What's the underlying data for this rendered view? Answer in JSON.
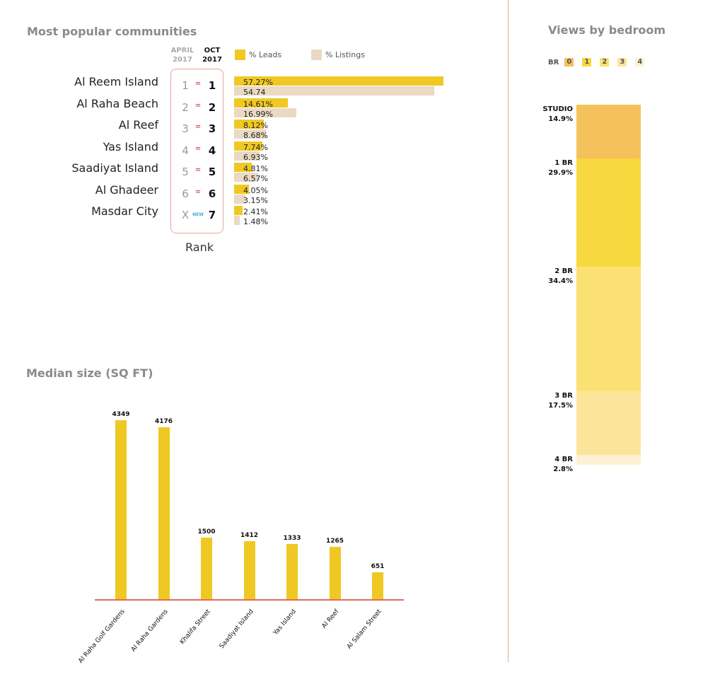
{
  "communities": {
    "title": "Most popular communities",
    "header_prev": [
      "APRIL",
      "2017"
    ],
    "header_curr": [
      "OCT",
      "2017"
    ],
    "legend_leads": "% Leads",
    "legend_listings": "% Listings",
    "rank_caption": "Rank",
    "colors": {
      "leads": "#f0c823",
      "listings": "#ead9c3",
      "rank_box": "#e6a49a"
    },
    "rows": [
      {
        "name": "Al Reem Island",
        "prev": "1",
        "change": "=",
        "curr": "1",
        "leads": 57.27,
        "listings": 54.74,
        "leads_label": "57.27%",
        "listings_label": "54.74"
      },
      {
        "name": "Al Raha Beach",
        "prev": "2",
        "change": "=",
        "curr": "2",
        "leads": 14.61,
        "listings": 16.99,
        "leads_label": "14.61%",
        "listings_label": "16.99%"
      },
      {
        "name": "Al Reef",
        "prev": "3",
        "change": "=",
        "curr": "3",
        "leads": 8.12,
        "listings": 8.68,
        "leads_label": "8.12%",
        "listings_label": "8.68%"
      },
      {
        "name": "Yas Island",
        "prev": "4",
        "change": "=",
        "curr": "4",
        "leads": 7.74,
        "listings": 6.93,
        "leads_label": "7.74%",
        "listings_label": "6.93%"
      },
      {
        "name": "Saadiyat Island",
        "prev": "5",
        "change": "=",
        "curr": "5",
        "leads": 4.81,
        "listings": 6.57,
        "leads_label": "4.81%",
        "listings_label": "6.57%"
      },
      {
        "name": "Al Ghadeer",
        "prev": "6",
        "change": "=",
        "curr": "6",
        "leads": 4.05,
        "listings": 3.15,
        "leads_label": "4.05%",
        "listings_label": "3.15%"
      },
      {
        "name": "Masdar City",
        "prev": "X",
        "change": "NEW",
        "curr": "7",
        "leads": 2.41,
        "listings": 1.48,
        "leads_label": "2.41%",
        "listings_label": "1.48%"
      }
    ]
  },
  "bedroom": {
    "title": "Views by bedroom",
    "legend_prefix": "BR",
    "legend_keys": [
      "0",
      "1",
      "2",
      "3",
      "4"
    ],
    "segments": [
      {
        "label": "STUDIO",
        "value": 14.9,
        "value_label": "14.9%",
        "color": "#f5c15a"
      },
      {
        "label": "1 BR",
        "value": 29.9,
        "value_label": "29.9%",
        "color": "#f7d83f"
      },
      {
        "label": "2 BR",
        "value": 34.4,
        "value_label": "34.4%",
        "color": "#fbe173"
      },
      {
        "label": "3 BR",
        "value": 17.5,
        "value_label": "17.5%",
        "color": "#fce59a"
      },
      {
        "label": "4 BR",
        "value": 2.8,
        "value_label": "2.8%",
        "color": "#fcf1d4"
      }
    ]
  },
  "median_size": {
    "title": "Median size (SQ FT)",
    "bar_color": "#f0c823",
    "baseline_color": "#e06a5a"
  },
  "chart_data": [
    {
      "type": "bar",
      "title": "Most popular communities",
      "categories": [
        "Al Reem Island",
        "Al Raha Beach",
        "Al Reef",
        "Yas Island",
        "Saadiyat Island",
        "Al Ghadeer",
        "Masdar City"
      ],
      "series": [
        {
          "name": "% Leads",
          "values": [
            57.27,
            14.61,
            8.12,
            7.74,
            4.81,
            4.05,
            2.41
          ]
        },
        {
          "name": "% Listings",
          "values": [
            54.74,
            16.99,
            8.68,
            6.93,
            6.57,
            3.15,
            1.48
          ]
        }
      ],
      "orientation": "horizontal",
      "legend_placement": "top"
    },
    {
      "type": "bar",
      "title": "Views by bedroom",
      "categories": [
        "STUDIO",
        "1 BR",
        "2 BR",
        "3 BR",
        "4 BR"
      ],
      "values": [
        14.9,
        29.9,
        34.4,
        17.5,
        2.8
      ],
      "stacked": true,
      "orientation": "vertical"
    },
    {
      "type": "bar",
      "title": "Median size (SQ FT)",
      "categories": [
        "Al Raha Golf Gardens",
        "Al Raha Gardens",
        "Khalifa Street",
        "Saadiyat Island",
        "Yas Island",
        "Al Reef",
        "Al Salam Street"
      ],
      "values": [
        4349,
        4176,
        1500,
        1412,
        1333,
        1265,
        651
      ],
      "value_labels": [
        "4349",
        "4176",
        "1500",
        "1412",
        "1333",
        "1265",
        "651"
      ],
      "ylim": [
        0,
        4349
      ],
      "grid": false
    }
  ]
}
